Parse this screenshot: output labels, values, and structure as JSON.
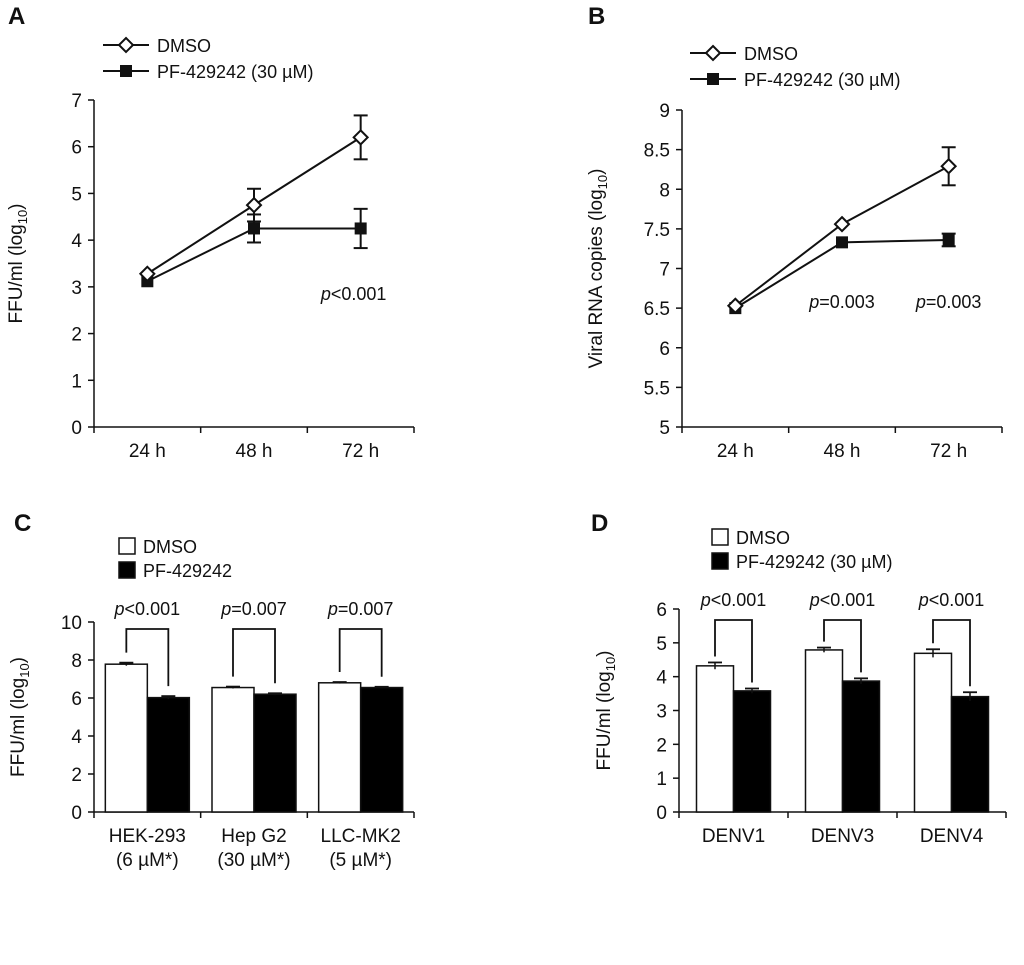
{
  "colors": {
    "ink": "#111111",
    "black_fill": "#000000",
    "white_fill": "#ffffff"
  },
  "chart_data": [
    {
      "panel": "A",
      "type": "line",
      "categories": [
        "24 h",
        "48 h",
        "72 h"
      ],
      "ylabel": "FFU/ml (log10)",
      "ylabel_main": "FFU/ml (log",
      "ylabel_sub": "10",
      "ylabel_end": ")",
      "ylim": [
        0,
        7
      ],
      "yticks": [
        "0",
        "1",
        "2",
        "3",
        "4",
        "5",
        "6",
        "7"
      ],
      "series": [
        {
          "name": "DMSO",
          "marker": "open-diamond",
          "values": [
            3.28,
            4.75,
            6.2
          ],
          "errors": [
            0.05,
            0.35,
            0.47
          ]
        },
        {
          "name": "PF-429242 (30 µM)",
          "marker": "filled-square",
          "values": [
            3.12,
            4.25,
            4.25
          ],
          "errors": [
            0.05,
            0.3,
            0.42
          ]
        }
      ],
      "annotations": [
        {
          "category": "72 h",
          "italic": "p",
          "text": "<0.001"
        }
      ]
    },
    {
      "panel": "B",
      "type": "line",
      "categories": [
        "24 h",
        "48 h",
        "72 h"
      ],
      "ylabel": "Viral RNA copies (log10)",
      "ylabel_main": "Viral RNA copies (log",
      "ylabel_sub": "10",
      "ylabel_end": ")",
      "ylim": [
        5,
        9
      ],
      "yticks": [
        "5",
        "5.5",
        "6",
        "6.5",
        "7",
        "7.5",
        "8",
        "8.5",
        "9"
      ],
      "series": [
        {
          "name": "DMSO",
          "marker": "open-diamond",
          "values": [
            6.53,
            7.56,
            8.29
          ],
          "errors": [
            0.04,
            0.05,
            0.24
          ]
        },
        {
          "name": "PF-429242 (30 µM)",
          "marker": "filled-square",
          "values": [
            6.5,
            7.33,
            7.36
          ],
          "errors": [
            0.03,
            0.03,
            0.08
          ]
        }
      ],
      "annotations": [
        {
          "category": "48 h",
          "italic": "p",
          "text": "=0.003"
        },
        {
          "category": "72 h",
          "italic": "p",
          "text": "=0.003"
        }
      ]
    },
    {
      "panel": "C",
      "type": "bar",
      "categories": [
        "HEK-293",
        "Hep G2",
        "LLC-MK2"
      ],
      "category_sublabels": [
        "(6 µM*)",
        "(30 µM*)",
        "(5 µM*)"
      ],
      "ylabel": "FFU/ml (log10)",
      "ylabel_main": "FFU/ml (log",
      "ylabel_sub": "10",
      "ylabel_end": ")",
      "ylim": [
        0,
        10
      ],
      "yticks": [
        "0",
        "2",
        "4",
        "6",
        "8",
        "10"
      ],
      "series": [
        {
          "name": "DMSO",
          "fill": "white",
          "values": [
            7.78,
            6.55,
            6.8
          ],
          "errors": [
            0.08,
            0.05,
            0.04
          ]
        },
        {
          "name": "PF-429242",
          "fill": "black",
          "values": [
            6.02,
            6.2,
            6.55
          ],
          "errors": [
            0.08,
            0.05,
            0.04
          ]
        }
      ],
      "annotations": [
        {
          "category": "HEK-293",
          "italic": "p",
          "text": "<0.001"
        },
        {
          "category": "Hep G2",
          "italic": "p",
          "text": "=0.007"
        },
        {
          "category": "LLC-MK2",
          "italic": "p",
          "text": "=0.007"
        }
      ]
    },
    {
      "panel": "D",
      "type": "bar",
      "categories": [
        "DENV1",
        "DENV3",
        "DENV4"
      ],
      "ylabel": "FFU/ml (log10)",
      "ylabel_main": "FFU/ml (log",
      "ylabel_sub": "10",
      "ylabel_end": ")",
      "ylim": [
        0,
        6
      ],
      "yticks": [
        "0",
        "1",
        "2",
        "3",
        "4",
        "5",
        "6"
      ],
      "series": [
        {
          "name": "DMSO",
          "fill": "white",
          "values": [
            4.32,
            4.79,
            4.69
          ],
          "errors": [
            0.1,
            0.07,
            0.12
          ]
        },
        {
          "name": "PF-429242  (30 µM)",
          "fill": "black",
          "values": [
            3.58,
            3.87,
            3.41
          ],
          "errors": [
            0.07,
            0.08,
            0.13
          ]
        }
      ],
      "annotations": [
        {
          "category": "DENV1",
          "italic": "p",
          "text": "<0.001"
        },
        {
          "category": "DENV3",
          "italic": "p",
          "text": "<0.001"
        },
        {
          "category": "DENV4",
          "italic": "p",
          "text": "<0.001"
        }
      ]
    }
  ]
}
